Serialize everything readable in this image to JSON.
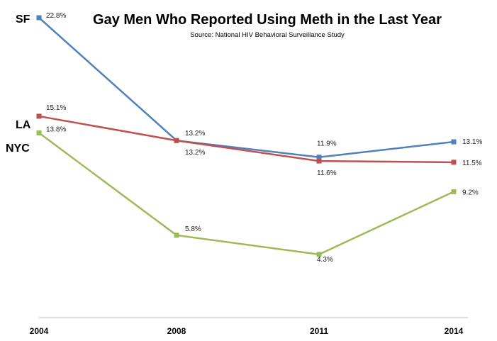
{
  "chart_data": {
    "type": "line",
    "title": "Gay Men Who Reported Using Meth in the Last Year",
    "subtitle": "Source: National HIV Behavioral Surveillance Study",
    "x": [
      "2004",
      "2008",
      "2011",
      "2014"
    ],
    "xlabel": "",
    "ylabel": "",
    "ylim": [
      0,
      25
    ],
    "grid": false,
    "legend": "inline labels at left of each series",
    "series": [
      {
        "name": "SF",
        "color": "#4f81bd",
        "values": [
          22.8,
          13.2,
          11.9,
          13.1
        ],
        "labels": [
          "22.8%",
          "13.2%",
          "11.9%",
          "13.1%"
        ]
      },
      {
        "name": "LA",
        "color": "#c0504d",
        "values": [
          15.1,
          13.2,
          11.6,
          11.5
        ],
        "labels": [
          "15.1%",
          "13.2%",
          "11.6%",
          "11.5%"
        ]
      },
      {
        "name": "NYC",
        "color": "#9bbb59",
        "values": [
          13.8,
          5.8,
          4.3,
          9.2
        ],
        "labels": [
          "13.8%",
          "5.8%",
          "4.3%",
          "9.2%"
        ]
      }
    ]
  }
}
